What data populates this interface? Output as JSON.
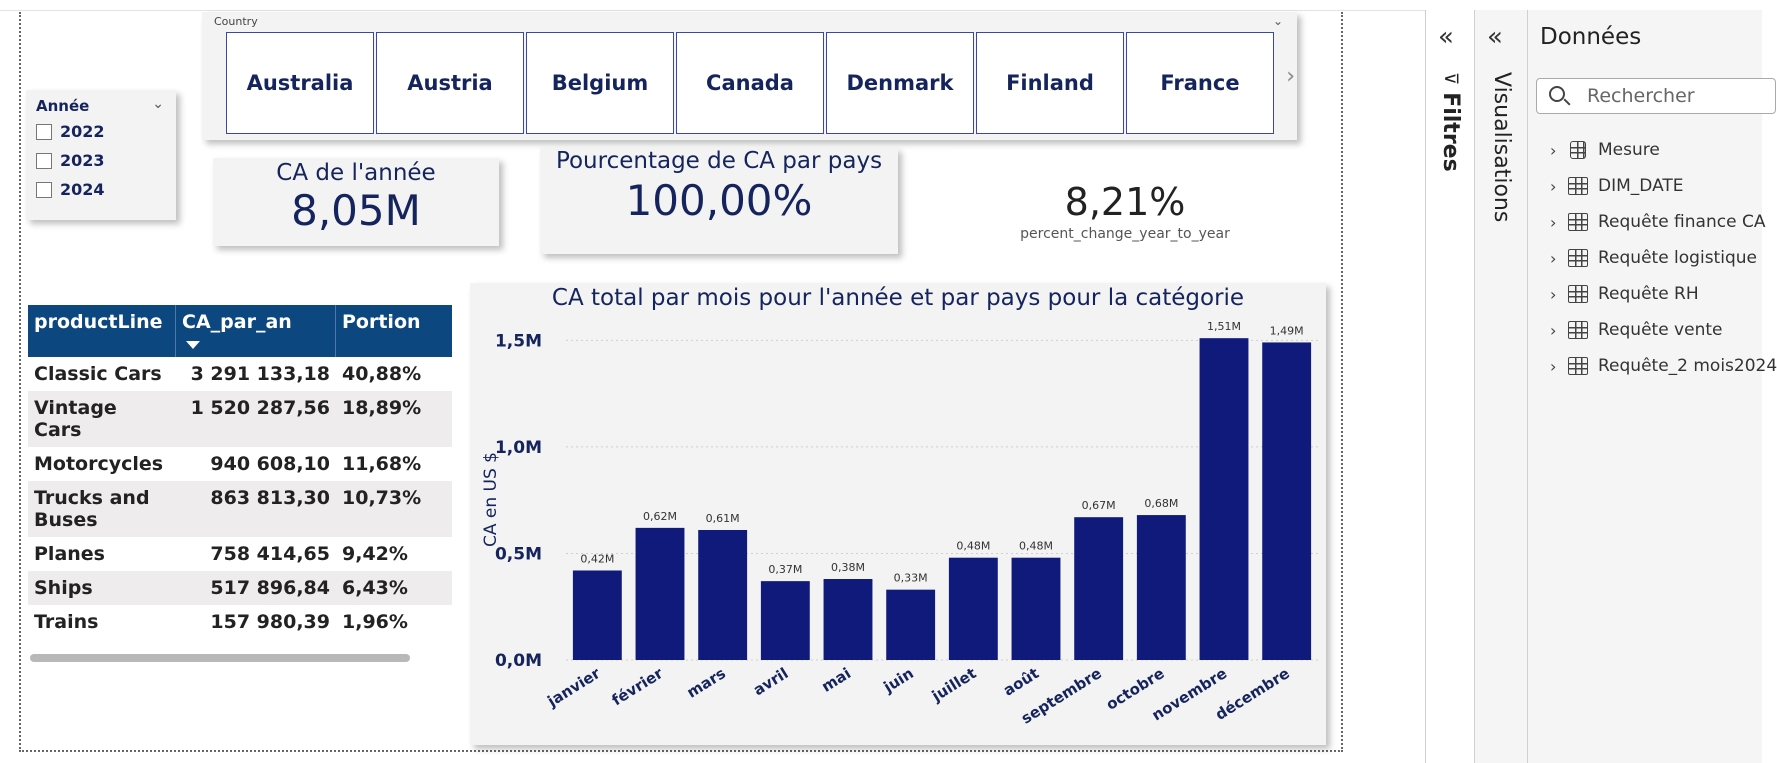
{
  "country_slicer": {
    "title": "Country",
    "items": [
      "Australia",
      "Austria",
      "Belgium",
      "Canada",
      "Denmark",
      "Finland",
      "France"
    ]
  },
  "annee_slicer": {
    "title": "Année",
    "items": [
      "2022",
      "2023",
      "2024"
    ]
  },
  "kpis": {
    "ca_annee": {
      "label": "CA de l'année",
      "value": "8,05M"
    },
    "pourcentage": {
      "label": "Pourcentage de CA par pays",
      "value": "100,00%"
    },
    "change": {
      "value": "8,21%",
      "label": "percent_change_year_to_year"
    }
  },
  "table": {
    "headers": [
      "productLine",
      "CA_par_an",
      "Portion"
    ],
    "rows": [
      [
        "Classic Cars",
        "3 291 133,18",
        "40,88%"
      ],
      [
        "Vintage Cars",
        "1 520 287,56",
        "18,89%"
      ],
      [
        "Motorcycles",
        "940 608,10",
        "11,68%"
      ],
      [
        "Trucks and Buses",
        "863 813,30",
        "10,73%"
      ],
      [
        "Planes",
        "758 414,65",
        "9,42%"
      ],
      [
        "Ships",
        "517 896,84",
        "6,43%"
      ],
      [
        "Trains",
        "157 980,39",
        "1,96%"
      ]
    ]
  },
  "chart_data": {
    "type": "bar",
    "title": "CA total par mois pour l'année et par pays pour la catégorie",
    "ylabel": "CA en US $",
    "xlabel": "",
    "categories": [
      "janvier",
      "février",
      "mars",
      "avril",
      "mai",
      "juin",
      "juillet",
      "août",
      "septembre",
      "octobre",
      "novembre",
      "décembre"
    ],
    "values": [
      0.42,
      0.62,
      0.61,
      0.37,
      0.38,
      0.33,
      0.48,
      0.48,
      0.67,
      0.68,
      1.51,
      1.49
    ],
    "data_labels": [
      "0,42M",
      "0,62M",
      "0,61M",
      "0,37M",
      "0,38M",
      "0,33M",
      "0,48M",
      "0,48M",
      "0,67M",
      "0,68M",
      "1,51M",
      "1,49M"
    ],
    "yticks": [
      0,
      0.5,
      1.0,
      1.5
    ],
    "ytick_labels": [
      "0,0M",
      "0,5M",
      "1,0M",
      "1,5M"
    ],
    "ylim": [
      0,
      1.6
    ],
    "grid": true,
    "bar_color": "#0f1a7a"
  },
  "panes": {
    "filtres": "Filtres",
    "visualisations": "Visualisations",
    "donnees": {
      "title": "Données",
      "search_placeholder": "Rechercher",
      "items": [
        "Mesure",
        "DIM_DATE",
        "Requête finance CA",
        "Requête logistique",
        "Requête RH",
        "Requête vente",
        "Requête_2 mois2024"
      ]
    }
  }
}
